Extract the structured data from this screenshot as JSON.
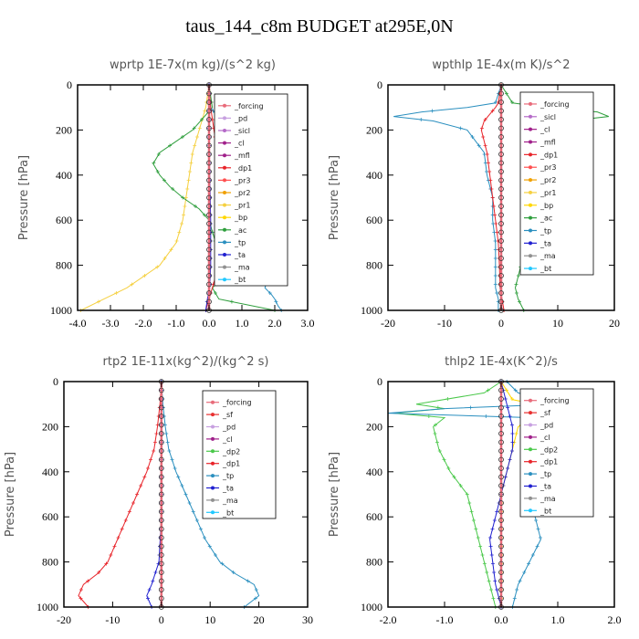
{
  "figure": {
    "title": "taus_144_c8m  BUDGET at295E,0N"
  },
  "colors": {
    "forcing": "#e86b7a",
    "pd": "#c7a0e0",
    "sicl": "#b56ac8",
    "cl": "#a0208a",
    "mfl": "#a0208a",
    "dp1": "#e8242a",
    "pr3": "#ff5050",
    "pr2": "#f0a000",
    "pr1": "#f5d040",
    "bp": "#ffd700",
    "ac": "#2e9e3c",
    "tp": "#2a8fbf",
    "ta": "#2020d0",
    "ma": "#909090",
    "bt": "#20c8ff",
    "sf": "#e83030",
    "dp2": "#4ac84a",
    "frame": "#000000"
  },
  "chart_data": [
    {
      "type": "line",
      "title": "wprtp   1E-7x(m kg)/(s^2 kg)",
      "ylabel": "Pressure [hPa]",
      "xlim": [
        -4.0,
        3.0
      ],
      "ylim": [
        1000,
        0
      ],
      "xticks": [
        -4.0,
        -3.0,
        -2.0,
        -1.0,
        0.0,
        1.0,
        2.0,
        3.0
      ],
      "xtick_labels": [
        "-4.0",
        "-3.0",
        "-2.0",
        "-1.0",
        "0.0",
        "1.0",
        "2.0",
        "3.0"
      ],
      "yticks": [
        0,
        200,
        400,
        600,
        800,
        1000
      ],
      "legend": [
        "_forcing",
        "_pd",
        "_sicl",
        "_cl",
        "_mfl",
        "_dp1",
        "_pr3",
        "_pr2",
        "_pr1",
        "_bp",
        "_ac",
        "_tp",
        "_ta",
        "_ma",
        "_bt"
      ],
      "legend_position": "top-right",
      "series": [
        {
          "key": "pr1",
          "p": [
            0,
            100,
            200,
            300,
            400,
            500,
            600,
            700,
            800,
            900,
            950,
            1000
          ],
          "x": [
            0,
            -0.1,
            -0.3,
            -0.5,
            -0.6,
            -0.7,
            -0.8,
            -1.0,
            -1.5,
            -2.5,
            -3.2,
            -3.9
          ]
        },
        {
          "key": "ac",
          "p": [
            0,
            100,
            150,
            200,
            250,
            300,
            350,
            400,
            450,
            500,
            550,
            600,
            650,
            700,
            750,
            800,
            850,
            900,
            950,
            1000
          ],
          "x": [
            0,
            0.1,
            -0.2,
            -0.5,
            -1.0,
            -1.5,
            -1.7,
            -1.5,
            -1.2,
            -0.8,
            -0.3,
            0.0,
            0.1,
            0.2,
            0.5,
            0.8,
            0.5,
            0.1,
            0.3,
            2.0
          ]
        },
        {
          "key": "tp",
          "p": [
            0,
            100,
            150,
            200,
            300,
            400,
            500,
            600,
            700,
            750,
            800,
            850,
            900,
            930,
            950,
            980,
            1000
          ],
          "x": [
            0,
            0.05,
            0.3,
            0.6,
            0.7,
            0.9,
            0.9,
            0.8,
            0.9,
            1.2,
            1.6,
            1.8,
            1.7,
            1.9,
            2.0,
            2.1,
            2.2
          ]
        },
        {
          "key": "dp1",
          "p": [
            0,
            100,
            200,
            300,
            400,
            500,
            600,
            700,
            800,
            900,
            950,
            1000
          ],
          "x": [
            0,
            0.05,
            0.15,
            0.25,
            0.4,
            0.5,
            0.5,
            0.4,
            0.3,
            0.1,
            0.0,
            -0.1
          ]
        },
        {
          "key": "ta",
          "p": [
            0,
            200,
            400,
            600,
            800,
            900,
            950,
            1000
          ],
          "x": [
            0,
            0.0,
            0.02,
            0.05,
            0.05,
            0.02,
            -0.05,
            -0.1
          ]
        },
        {
          "key": "forcing",
          "p": [
            0,
            100,
            200,
            300,
            400,
            500,
            600,
            700,
            800,
            900,
            1000
          ],
          "x": [
            0,
            0,
            0,
            0,
            0,
            0,
            0,
            0,
            0,
            0,
            0
          ]
        }
      ]
    },
    {
      "type": "line",
      "title": "wpthlp   1E-4x(m K)/s^2",
      "ylabel": "Pressure [hPa]",
      "xlim": [
        -20,
        20
      ],
      "ylim": [
        1000,
        0
      ],
      "xticks": [
        -20,
        -10,
        0,
        10,
        20
      ],
      "xtick_labels": [
        "-20",
        "-10",
        "0",
        "10",
        "20"
      ],
      "yticks": [
        0,
        200,
        400,
        600,
        800,
        1000
      ],
      "legend": [
        "_forcing",
        "_sicl",
        "_cl",
        "_mfl",
        "_dp1",
        "_pr3",
        "_pr2",
        "_pr1",
        "_bp",
        "_ac",
        "_tp",
        "_ta",
        "_ma",
        "_bt"
      ],
      "legend_position": "top-right",
      "series": [
        {
          "key": "tp",
          "p": [
            0,
            80,
            100,
            120,
            140,
            160,
            200,
            300,
            400,
            500,
            600,
            700,
            800,
            900,
            950,
            1000
          ],
          "x": [
            0,
            -1,
            -6,
            -14,
            -19,
            -12,
            -6,
            -3,
            -2.5,
            -1.5,
            -1.5,
            -1,
            -1,
            -1,
            -0.5,
            -0.5
          ]
        },
        {
          "key": "ac",
          "p": [
            0,
            80,
            100,
            120,
            140,
            160,
            200,
            300,
            400,
            500,
            600,
            700,
            800,
            900,
            950,
            1000
          ],
          "x": [
            0,
            2,
            8,
            17,
            19,
            12,
            8,
            5,
            5,
            6,
            5.5,
            4.5,
            3.5,
            2.5,
            3,
            4
          ]
        },
        {
          "key": "dp1",
          "p": [
            0,
            80,
            100,
            130,
            160,
            200,
            250,
            300,
            400,
            500,
            600,
            700,
            800,
            900,
            1000
          ],
          "x": [
            0,
            -0.5,
            -1,
            -2,
            -3,
            -3.5,
            -3,
            -2.5,
            -2,
            -1.5,
            -1,
            -0.5,
            -0.3,
            -0.2,
            0.5
          ]
        },
        {
          "key": "forcing",
          "p": [
            0,
            100,
            200,
            300,
            400,
            500,
            600,
            700,
            800,
            900,
            1000
          ],
          "x": [
            0,
            0,
            0,
            0,
            0,
            0,
            0,
            0,
            0,
            0,
            0
          ]
        }
      ]
    },
    {
      "type": "line",
      "title": "rtp2   1E-11x(kg^2)/(kg^2 s)",
      "ylabel": "Pressure [hPa]",
      "xlim": [
        -20,
        30
      ],
      "ylim": [
        1000,
        0
      ],
      "xticks": [
        -20,
        -10,
        0,
        10,
        20,
        30
      ],
      "xtick_labels": [
        "-20",
        "-10",
        "0",
        "10",
        "20",
        "30"
      ],
      "yticks": [
        0,
        200,
        400,
        600,
        800,
        1000
      ],
      "legend": [
        "_forcing",
        "_sf",
        "_pd",
        "_cl",
        "_dp2",
        "_dp1",
        "_tp",
        "_ta",
        "_ma",
        "_bt"
      ],
      "legend_position": "top-right",
      "series": [
        {
          "key": "dp1",
          "p": [
            0,
            100,
            200,
            300,
            400,
            500,
            600,
            700,
            800,
            850,
            900,
            950,
            1000
          ],
          "x": [
            0,
            -0.3,
            -0.8,
            -1.5,
            -3,
            -5,
            -7,
            -9,
            -11,
            -13,
            -16,
            -17,
            -15
          ]
        },
        {
          "key": "tp",
          "p": [
            0,
            100,
            200,
            300,
            400,
            500,
            600,
            700,
            800,
            850,
            900,
            950,
            1000
          ],
          "x": [
            0,
            0.3,
            0.8,
            1.5,
            3,
            5,
            7,
            9,
            12,
            15,
            19,
            20,
            17
          ]
        },
        {
          "key": "ta",
          "p": [
            0,
            200,
            400,
            600,
            800,
            900,
            950,
            1000
          ],
          "x": [
            0,
            0,
            0,
            0,
            -0.5,
            -2,
            -3,
            -2
          ]
        },
        {
          "key": "forcing",
          "p": [
            0,
            100,
            200,
            300,
            400,
            500,
            600,
            700,
            800,
            900,
            1000
          ],
          "x": [
            0,
            0,
            0,
            0,
            0,
            0,
            0,
            0,
            0,
            0,
            0
          ]
        }
      ]
    },
    {
      "type": "line",
      "title": "thlp2   1E-4x(K^2)/s",
      "ylabel": "Pressure [hPa]",
      "xlim": [
        -2.0,
        2.0
      ],
      "ylim": [
        1000,
        0
      ],
      "xticks": [
        -2.0,
        -1.0,
        0.0,
        1.0,
        2.0
      ],
      "xtick_labels": [
        "-2.0",
        "-1.0",
        "0.0",
        "1.0",
        "2.0"
      ],
      "yticks": [
        0,
        200,
        400,
        600,
        800,
        1000
      ],
      "legend": [
        "_forcing",
        "_sf",
        "_pd",
        "_cl",
        "_dp2",
        "_dp1",
        "_tp",
        "_ta",
        "_ma",
        "_bt"
      ],
      "legend_position": "top-right",
      "series": [
        {
          "key": "dp2",
          "p": [
            0,
            50,
            100,
            120,
            140,
            160,
            200,
            300,
            400,
            500,
            600,
            700,
            800,
            900,
            1000
          ],
          "x": [
            0,
            -0.3,
            -1.5,
            -1.0,
            -1.9,
            -1.0,
            -1.2,
            -1.1,
            -0.9,
            -0.6,
            -0.5,
            -0.4,
            -0.3,
            -0.2,
            -0.1
          ]
        },
        {
          "key": "tp",
          "p": [
            0,
            50,
            100,
            120,
            140,
            160,
            200,
            300,
            400,
            500,
            550,
            600,
            700,
            800,
            900,
            1000
          ],
          "x": [
            0.1,
            0.3,
            1.0,
            -1.0,
            -2.0,
            0.5,
            0.6,
            0.8,
            0.9,
            0.8,
            0.9,
            0.6,
            0.7,
            0.5,
            0.3,
            0.2
          ]
        },
        {
          "key": "bp",
          "p": [
            0,
            80,
            120,
            140,
            160,
            200,
            300,
            400,
            500
          ],
          "x": [
            0,
            0.2,
            1.0,
            1.5,
            0.6,
            0.3,
            0.2,
            0.1,
            0
          ]
        },
        {
          "key": "ta",
          "p": [
            0,
            100,
            200,
            300,
            400,
            500,
            600,
            700,
            800,
            900,
            1000
          ],
          "x": [
            0,
            0.1,
            0.2,
            0.2,
            0.1,
            0.0,
            -0.1,
            -0.2,
            -0.15,
            -0.1,
            0
          ]
        },
        {
          "key": "forcing",
          "p": [
            0,
            100,
            200,
            300,
            400,
            500,
            600,
            700,
            800,
            900,
            1000
          ],
          "x": [
            0,
            0,
            0,
            0,
            0,
            0,
            0,
            0,
            0,
            0,
            0
          ]
        }
      ]
    }
  ]
}
